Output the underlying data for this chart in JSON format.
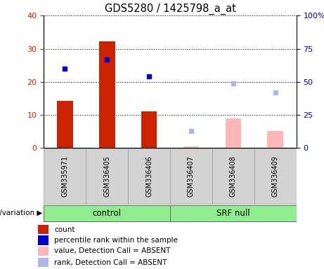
{
  "title": "GDS5280 / 1425798_a_at",
  "samples": [
    "GSM335971",
    "GSM336405",
    "GSM336406",
    "GSM336407",
    "GSM336408",
    "GSM336409"
  ],
  "bar_colors_present": "#cc2200",
  "bar_colors_absent": "#ffb6b6",
  "dot_colors_present": "#0000cc",
  "dot_colors_absent": "#b0b8e8",
  "count_values": [
    14.2,
    32.3,
    11.1,
    null,
    null,
    null
  ],
  "rank_values_present": [
    60,
    67,
    54,
    null,
    null,
    null
  ],
  "count_values_absent": [
    null,
    null,
    null,
    0.4,
    9.0,
    5.2
  ],
  "rank_values_absent": [
    null,
    null,
    null,
    13,
    49,
    42
  ],
  "ylim_left": [
    0,
    40
  ],
  "ylim_right": [
    0,
    100
  ],
  "yticks_left": [
    0,
    10,
    20,
    30,
    40
  ],
  "yticks_right": [
    0,
    25,
    50,
    75,
    100
  ],
  "yticklabels_right": [
    "0",
    "25",
    "50",
    "75",
    "100%"
  ],
  "group_box_color": "#d3d3d3",
  "green_color": "#90ee90",
  "legend_labels": [
    "count",
    "percentile rank within the sample",
    "value, Detection Call = ABSENT",
    "rank, Detection Call = ABSENT"
  ],
  "legend_colors": [
    "#cc2200",
    "#0000cc",
    "#ffb6b6",
    "#b0b8e8"
  ],
  "genotype_label": "genotype/variation"
}
